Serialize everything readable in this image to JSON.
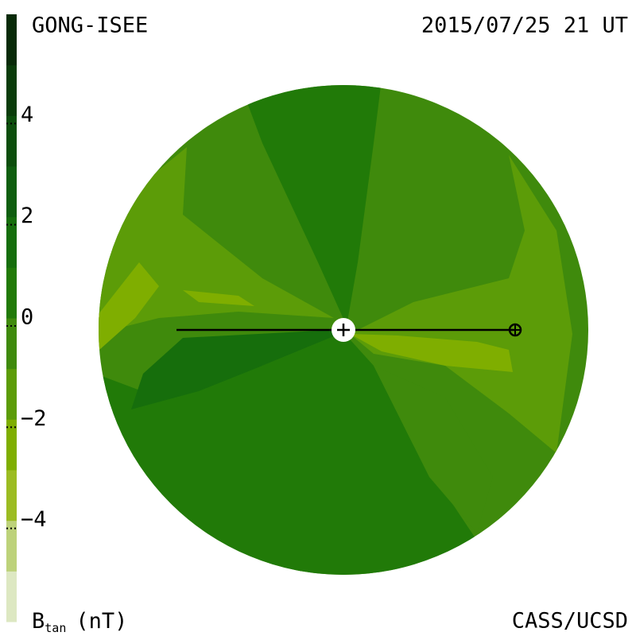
{
  "header": {
    "left": "GONG-ISEE",
    "right": "2015/07/25 21 UT"
  },
  "colorbar": {
    "lim": [
      -6,
      6
    ],
    "ticks": [
      {
        "value": 4,
        "label": "4"
      },
      {
        "value": 2,
        "label": "2"
      },
      {
        "value": 0,
        "label": "0"
      },
      {
        "value": -2,
        "label": "−2"
      },
      {
        "value": -4,
        "label": "−4"
      }
    ],
    "colors": [
      "#dde8c2",
      "#bdd27a",
      "#9cbc22",
      "#7fae00",
      "#5c9c08",
      "#3f8a0c",
      "#217a08",
      "#166e0c",
      "#0f5e0f",
      "#0c4e0c",
      "#0a3c0a",
      "#082a08"
    ]
  },
  "footer": {
    "left": {
      "symbol": "B",
      "subscript": "tan",
      "unit": "(nT)"
    },
    "right": "CASS/UCSD"
  }
}
